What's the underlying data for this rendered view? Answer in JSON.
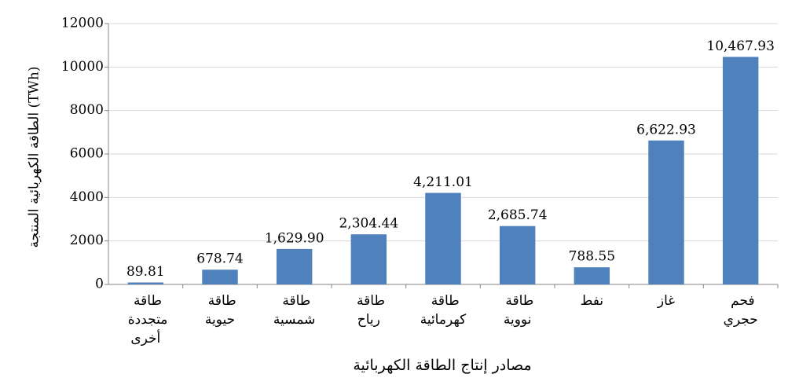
{
  "chart_data": {
    "type": "bar",
    "y_label": "الطاقة الكهربائية المنتجة (TWh)",
    "x_label": "مصادر إنتاج الطاقة الكهربائية",
    "categories": [
      "طاقة متجددة أخرى",
      "طاقة حيوية",
      "طاقة شمسية",
      "طاقة رياح",
      "طاقة كهرمائية",
      "طاقة نووية",
      "نفط",
      "غاز",
      "فحم حجري"
    ],
    "values": [
      89.81,
      678.74,
      1629.9,
      2304.44,
      4211.01,
      2685.74,
      788.55,
      6622.93,
      10467.93
    ],
    "value_labels": [
      "89.81",
      "678.74",
      "1,629.90",
      "2,304.44",
      "4,211.01",
      "2,685.74",
      "788.55",
      "6,622.93",
      "10,467.93"
    ],
    "color": "#4f81bd",
    "ylim": [
      0,
      12000
    ],
    "yticks": [
      0,
      2000,
      4000,
      6000,
      8000,
      10000,
      12000
    ],
    "grid": true
  }
}
